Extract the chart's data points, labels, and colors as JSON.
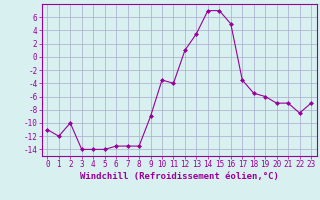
{
  "x": [
    0,
    1,
    2,
    3,
    4,
    5,
    6,
    7,
    8,
    9,
    10,
    11,
    12,
    13,
    14,
    15,
    16,
    17,
    18,
    19,
    20,
    21,
    22,
    23
  ],
  "y": [
    -11,
    -12,
    -10,
    -14,
    -14,
    -14,
    -13.5,
    -13.5,
    -13.5,
    -9,
    -3.5,
    -4,
    1,
    3.5,
    7,
    7,
    5,
    -3.5,
    -5.5,
    -6,
    -7,
    -7,
    -8.5,
    -7
  ],
  "line_color": "#990099",
  "marker": "D",
  "marker_size": 2,
  "bg_color": "#d8f0f0",
  "grid_color": "#aaaacc",
  "xlabel": "Windchill (Refroidissement éolien,°C)",
  "xlabel_fontsize": 6.5,
  "ylim": [
    -15,
    8
  ],
  "xlim": [
    -0.5,
    23.5
  ],
  "yticks": [
    6,
    4,
    2,
    0,
    -2,
    -4,
    -6,
    -8,
    -10,
    -12,
    -14
  ],
  "xticks": [
    0,
    1,
    2,
    3,
    4,
    5,
    6,
    7,
    8,
    9,
    10,
    11,
    12,
    13,
    14,
    15,
    16,
    17,
    18,
    19,
    20,
    21,
    22,
    23
  ],
  "tick_label_fontsize": 5.5,
  "tick_color": "#990099"
}
